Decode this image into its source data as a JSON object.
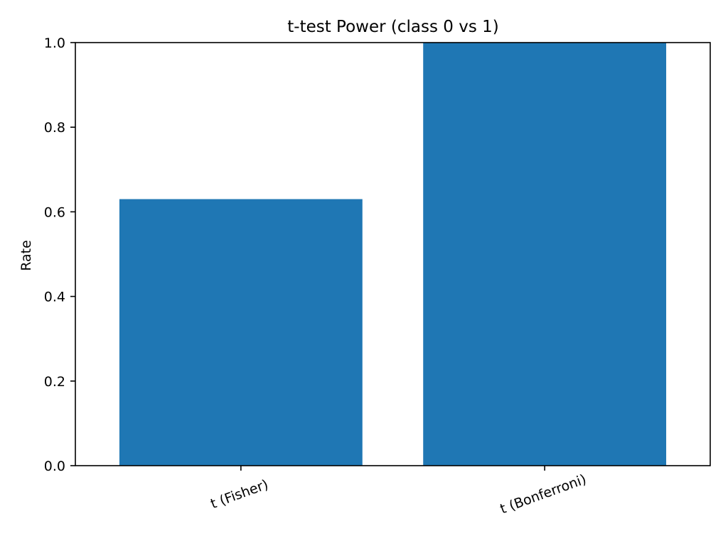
{
  "chart_data": {
    "type": "bar",
    "title": "t-test Power (class 0 vs 1)",
    "xlabel": "",
    "ylabel": "Rate",
    "categories": [
      "t (Fisher)",
      "t (Bonferroni)"
    ],
    "values": [
      0.63,
      1.0
    ],
    "ylim": [
      0,
      1.0
    ],
    "yticks": [
      "0.0",
      "0.2",
      "0.4",
      "0.6",
      "0.8",
      "1.0"
    ],
    "bar_color": "#1f77b4",
    "grid": false,
    "legend": "none"
  }
}
